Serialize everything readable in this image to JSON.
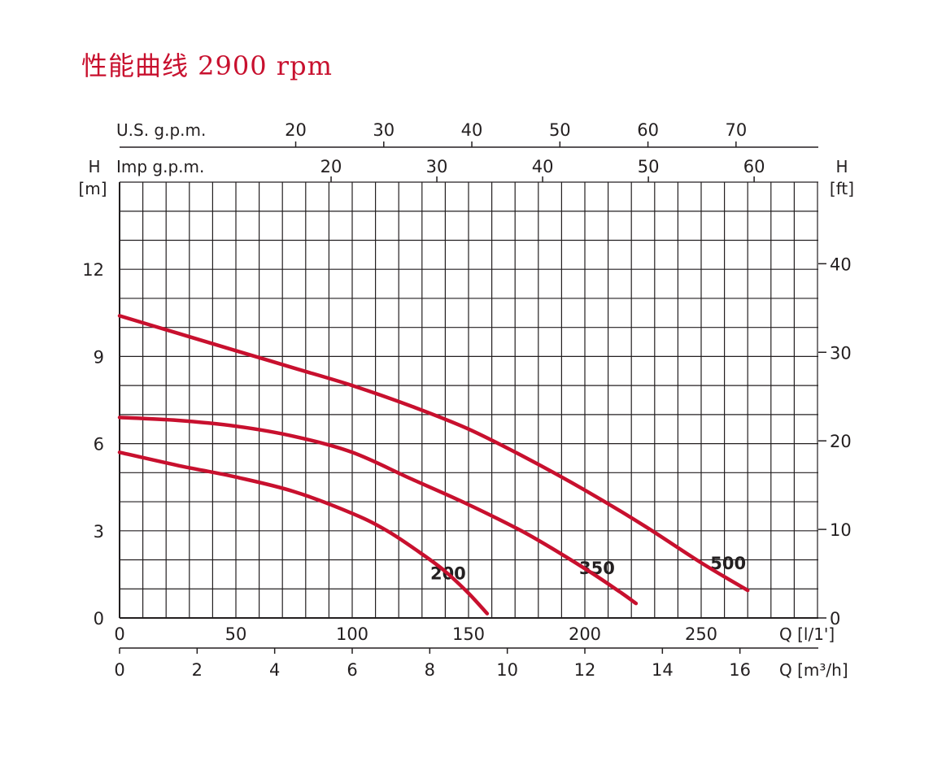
{
  "title": "性能曲线 2900 rpm",
  "colors": {
    "curve": "#c8102e",
    "grid": "#231f20",
    "title": "#c8102e"
  },
  "chart_data": {
    "type": "line",
    "title": "性能曲线 2900 rpm",
    "grid": true,
    "x_primary": {
      "label": "Q [l/1']",
      "min": 0,
      "max": 300,
      "major_ticks": [
        0,
        50,
        100,
        150,
        200,
        250
      ]
    },
    "x_secondary": {
      "label": "Q [m³/h]",
      "ticks": [
        0,
        2,
        4,
        6,
        8,
        10,
        12,
        14,
        16
      ]
    },
    "x_top_us": {
      "label": "U.S. g.p.m.",
      "ticks": [
        20,
        30,
        40,
        50,
        60,
        70
      ]
    },
    "x_top_imp": {
      "label": "Imp g.p.m.",
      "ticks": [
        20,
        30,
        40,
        50,
        60
      ]
    },
    "y_left": {
      "label_top": "H",
      "label_unit": "[m]",
      "min": 0,
      "max": 15,
      "ticks": [
        0,
        3,
        6,
        9,
        12
      ]
    },
    "y_right": {
      "label_top": "H",
      "label_unit": "[ft]",
      "ticks": [
        0,
        10,
        20,
        30,
        40
      ]
    },
    "series": [
      {
        "name": "200",
        "x": [
          0,
          25,
          50,
          75,
          100,
          115,
          130,
          140,
          150,
          158
        ],
        "y": [
          5.7,
          5.25,
          4.85,
          4.35,
          3.6,
          3.0,
          2.2,
          1.6,
          0.85,
          0.15
        ]
      },
      {
        "name": "350",
        "x": [
          0,
          25,
          50,
          75,
          100,
          125,
          150,
          175,
          200,
          215,
          222
        ],
        "y": [
          6.9,
          6.8,
          6.6,
          6.25,
          5.7,
          4.8,
          3.9,
          2.9,
          1.7,
          0.9,
          0.5
        ]
      },
      {
        "name": "500",
        "x": [
          0,
          25,
          50,
          75,
          100,
          125,
          150,
          175,
          200,
          225,
          250,
          270
        ],
        "y": [
          10.4,
          9.8,
          9.2,
          8.6,
          8.0,
          7.3,
          6.5,
          5.5,
          4.4,
          3.2,
          1.9,
          0.95
        ]
      }
    ]
  }
}
